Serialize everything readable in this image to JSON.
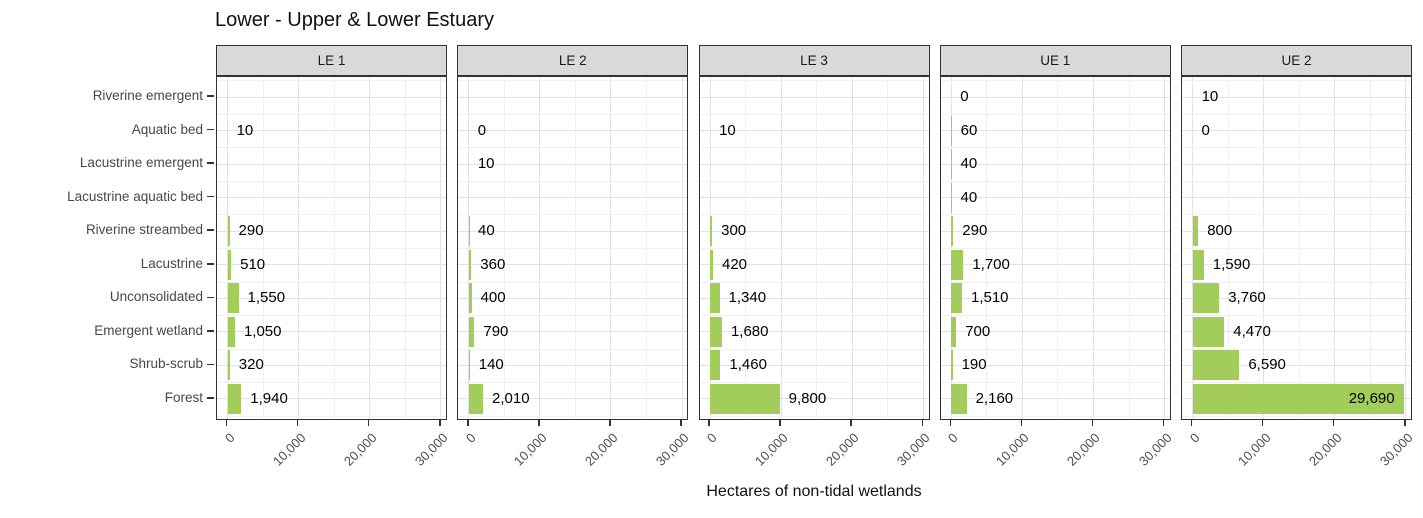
{
  "chart_data": {
    "type": "bar",
    "orientation": "horizontal",
    "title": "Lower - Upper & Lower Estuary",
    "xlabel": "Hectares of non-tidal wetlands",
    "ylabel": "",
    "categories": [
      "Riverine emergent",
      "Aquatic bed",
      "Lacustrine emergent",
      "Lacustrine aquatic bed",
      "Riverine streambed",
      "Lacustrine",
      "Unconsolidated",
      "Emergent wetland",
      "Shrub-scrub",
      "Forest"
    ],
    "xlim": [
      0,
      30000
    ],
    "x_ticks": {
      "values": [
        0,
        10000,
        20000,
        30000
      ],
      "labels": [
        "0",
        "10,000",
        "20,000",
        "30,000"
      ]
    },
    "grid": "major-and-minor",
    "legend_position": "none",
    "facets": [
      {
        "label": "LE 1",
        "values": [
          null,
          10,
          null,
          null,
          290,
          510,
          1550,
          1050,
          320,
          1940
        ]
      },
      {
        "label": "LE 2",
        "values": [
          null,
          0,
          10,
          null,
          40,
          360,
          400,
          790,
          140,
          2010
        ]
      },
      {
        "label": "LE 3",
        "values": [
          null,
          10,
          null,
          null,
          300,
          420,
          1340,
          1680,
          1460,
          9800
        ]
      },
      {
        "label": "UE 1",
        "values": [
          0,
          60,
          40,
          40,
          290,
          1700,
          1510,
          700,
          190,
          2160
        ]
      },
      {
        "label": "UE 2",
        "values": [
          10,
          0,
          null,
          null,
          800,
          1590,
          3760,
          4470,
          6590,
          29690
        ]
      }
    ],
    "colors": {
      "bar": "#a2cd5a",
      "strip_background": "#d9d9d9",
      "panel_border": "#333333",
      "grid_major": "#e2e2e2",
      "grid_minor": "#f0f0f0",
      "axis_text": "#4d4d4d",
      "value_label": "#000000"
    }
  }
}
